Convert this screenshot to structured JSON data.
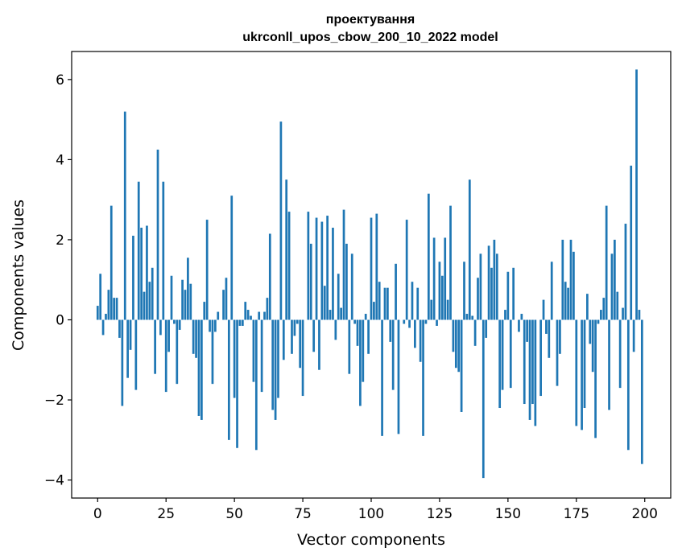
{
  "chart_data": {
    "type": "bar",
    "title_line1": "проектування",
    "title_line2": "ukrconll_upos_cbow_200_10_2022 model",
    "xlabel": "Vector components",
    "ylabel": "Components values",
    "xlim": [
      -9.5,
      209.5
    ],
    "ylim": [
      -4.45,
      6.7
    ],
    "xticks": [
      0,
      25,
      50,
      75,
      100,
      125,
      150,
      175,
      200
    ],
    "xtick_labels": [
      "0",
      "25",
      "50",
      "75",
      "100",
      "125",
      "150",
      "175",
      "200"
    ],
    "yticks": [
      -4,
      -2,
      0,
      2,
      4,
      6
    ],
    "ytick_labels": [
      "−4",
      "−2",
      "0",
      "2",
      "4",
      "6"
    ],
    "grid": false,
    "bar_color": "#1f77b4",
    "values": [
      0.35,
      1.15,
      -0.38,
      0.15,
      0.75,
      2.85,
      0.55,
      0.55,
      -0.45,
      -2.15,
      5.2,
      -1.45,
      -0.75,
      2.1,
      -1.75,
      3.45,
      2.3,
      0.7,
      2.35,
      0.95,
      1.3,
      -1.35,
      4.25,
      -0.38,
      3.45,
      -1.8,
      -0.8,
      1.1,
      -0.1,
      -1.6,
      -0.25,
      1.0,
      0.75,
      1.55,
      0.9,
      -0.85,
      -0.95,
      -2.4,
      -2.5,
      0.45,
      2.5,
      -0.3,
      -1.6,
      -0.3,
      0.2,
      0.0,
      0.75,
      1.05,
      -3.0,
      3.1,
      -1.95,
      -3.2,
      -0.15,
      -0.15,
      0.45,
      0.25,
      0.1,
      -1.55,
      -3.25,
      0.2,
      -1.8,
      0.2,
      0.55,
      2.15,
      -2.25,
      -2.5,
      -1.95,
      4.95,
      -1.0,
      3.5,
      2.7,
      -0.85,
      -0.4,
      -0.1,
      -1.2,
      -1.9,
      0.0,
      2.7,
      1.9,
      -0.8,
      2.55,
      -1.25,
      2.45,
      0.85,
      2.6,
      0.25,
      2.3,
      -0.5,
      1.15,
      0.3,
      2.75,
      1.9,
      -1.35,
      1.65,
      -0.1,
      -0.65,
      -2.15,
      -1.55,
      0.15,
      -0.85,
      2.55,
      0.45,
      2.65,
      0.95,
      -2.9,
      0.8,
      0.8,
      -0.55,
      -1.75,
      1.4,
      -2.85,
      0.0,
      -0.1,
      2.5,
      -0.2,
      0.95,
      -0.7,
      0.8,
      -1.05,
      -2.9,
      -0.1,
      3.15,
      0.5,
      2.05,
      -0.15,
      1.45,
      1.1,
      2.05,
      0.5,
      2.85,
      -0.8,
      -1.2,
      -1.3,
      -2.3,
      1.45,
      0.15,
      3.5,
      0.1,
      -0.65,
      1.05,
      1.65,
      -3.95,
      -0.45,
      1.85,
      1.3,
      2.0,
      1.65,
      -2.2,
      -1.75,
      0.25,
      1.2,
      -1.7,
      1.3,
      0.0,
      -0.3,
      0.15,
      -2.1,
      -0.55,
      -2.5,
      -2.1,
      -2.65,
      0.0,
      -1.9,
      0.5,
      -0.35,
      -0.95,
      1.45,
      0.0,
      -1.65,
      -0.85,
      2.0,
      0.95,
      0.8,
      2.0,
      1.7,
      -2.65,
      0.0,
      -2.75,
      -2.2,
      0.65,
      -0.6,
      -1.3,
      -2.95,
      -0.1,
      0.25,
      0.55,
      2.85,
      -2.25,
      1.65,
      2.0,
      0.7,
      -1.7,
      0.3,
      2.4,
      -3.25,
      3.85,
      -0.8,
      6.25,
      0.25,
      -3.6
    ]
  }
}
